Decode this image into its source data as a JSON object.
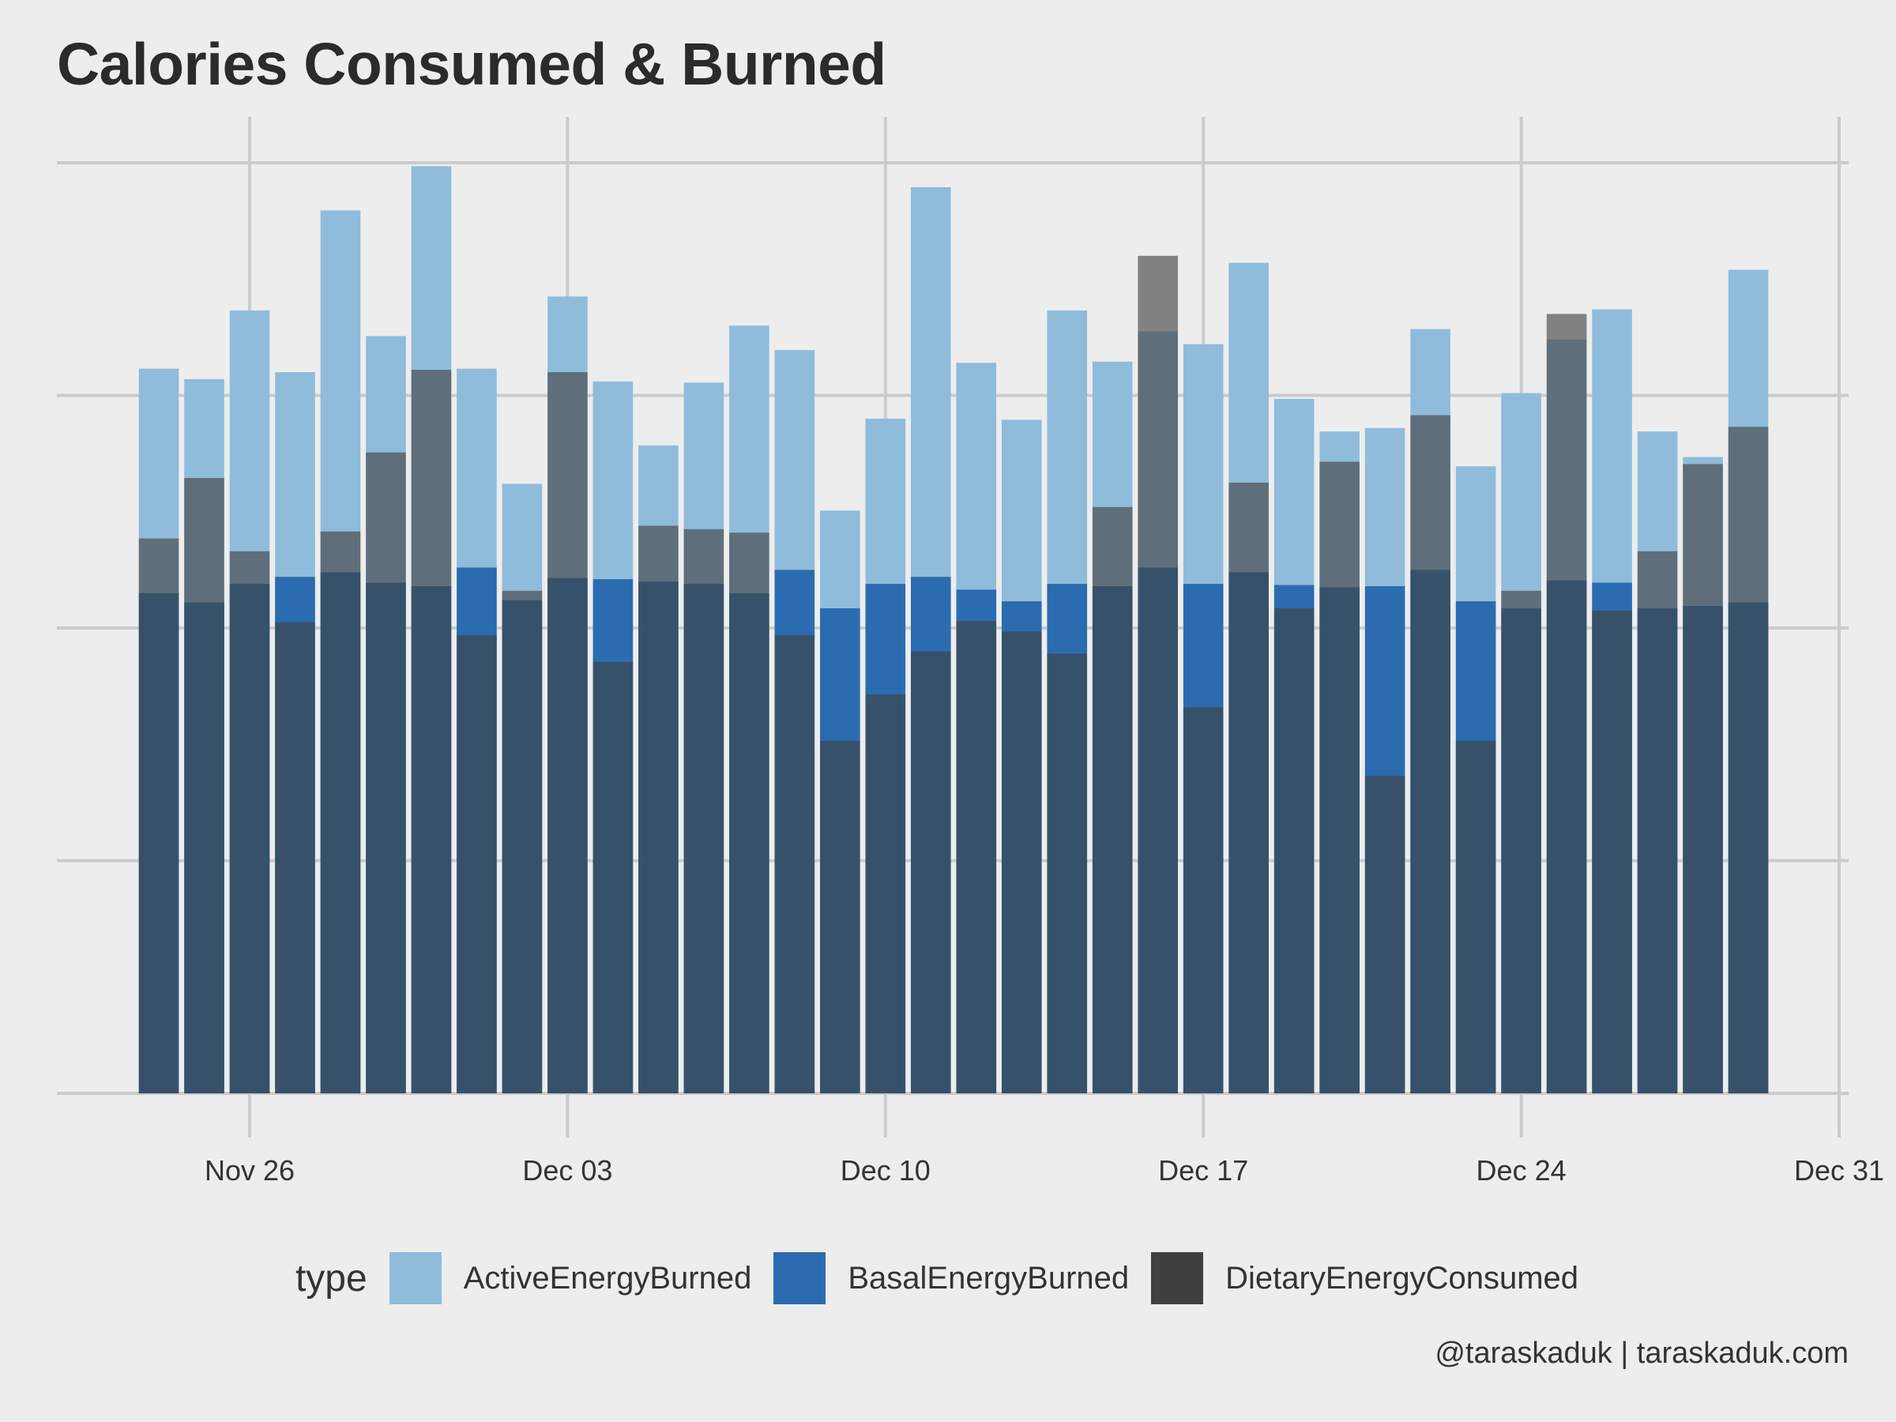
{
  "title": "Calories Consumed & Burned",
  "credit": "@taraskaduk | taraskaduk.com",
  "legend": {
    "title": "type",
    "items": [
      {
        "label": "ActiveEnergyBurned",
        "color": "#8fbcdb"
      },
      {
        "label": "BasalEnergyBurned",
        "color": "#2b6cb0"
      },
      {
        "label": "DietaryEnergyConsumed",
        "color": "#404040"
      }
    ]
  },
  "chart_data": {
    "type": "bar",
    "title": "Calories Consumed & Burned",
    "xlabel": "",
    "ylabel": "",
    "y_tick_labels_shown": false,
    "bar_mode": "overlay",
    "grid": true,
    "legend_position": "bottom",
    "x_ticks": [
      "Nov 26",
      "Dec 03",
      "Dec 10",
      "Dec 17",
      "Dec 24",
      "Dec 31"
    ],
    "x_tick_dates": [
      "2017-11-26",
      "2017-12-03",
      "2017-12-10",
      "2017-12-17",
      "2017-12-24",
      "2017-12-31"
    ],
    "x": [
      "2017-11-24",
      "2017-11-25",
      "2017-11-26",
      "2017-11-27",
      "2017-11-28",
      "2017-11-29",
      "2017-11-30",
      "2017-12-01",
      "2017-12-02",
      "2017-12-03",
      "2017-12-04",
      "2017-12-05",
      "2017-12-06",
      "2017-12-07",
      "2017-12-08",
      "2017-12-09",
      "2017-12-10",
      "2017-12-11",
      "2017-12-12",
      "2017-12-13",
      "2017-12-14",
      "2017-12-15",
      "2017-12-16",
      "2017-12-17",
      "2017-12-18",
      "2017-12-19",
      "2017-12-20",
      "2017-12-21",
      "2017-12-22",
      "2017-12-23",
      "2017-12-24",
      "2017-12-25",
      "2017-12-26",
      "2017-12-27",
      "2017-12-28",
      "2017-12-29"
    ],
    "ylim": [
      0,
      4000
    ],
    "y_gridlines": [
      0,
      1000,
      2000,
      3000,
      4000
    ],
    "series": [
      {
        "name": "ActiveEnergyBurned",
        "color": "#8fbcdb",
        "values": [
          3115,
          3070,
          3365,
          3100,
          3795,
          3255,
          3985,
          3115,
          2620,
          3425,
          3060,
          2785,
          3055,
          3300,
          3195,
          2505,
          2900,
          3895,
          3140,
          2895,
          3365,
          3145,
          3275,
          3220,
          3570,
          2985,
          2845,
          2860,
          3285,
          2695,
          3010,
          3240,
          3370,
          2845,
          2735,
          3540
        ]
      },
      {
        "name": "BasalEnergyBurned",
        "color": "#2b6cb0",
        "values": [
          2150,
          2110,
          2190,
          2220,
          2240,
          2195,
          2180,
          2260,
          2120,
          2215,
          2210,
          2200,
          2190,
          2150,
          2250,
          2085,
          2190,
          2220,
          2165,
          2115,
          2190,
          2180,
          2260,
          2190,
          2240,
          2185,
          2175,
          2180,
          2250,
          2115,
          2085,
          2205,
          2195,
          2085,
          2095,
          2110
        ]
      },
      {
        "name": "DietaryEnergyConsumed",
        "color": "#404040",
        "values": [
          2385,
          2645,
          2330,
          2025,
          2415,
          2755,
          3110,
          1970,
          2160,
          3100,
          1855,
          2440,
          2425,
          2410,
          1970,
          1515,
          1715,
          1900,
          2030,
          1985,
          1890,
          2520,
          3600,
          1660,
          2625,
          2085,
          2715,
          1365,
          2915,
          1515,
          2160,
          3350,
          2075,
          2330,
          2705,
          2865
        ]
      }
    ]
  }
}
